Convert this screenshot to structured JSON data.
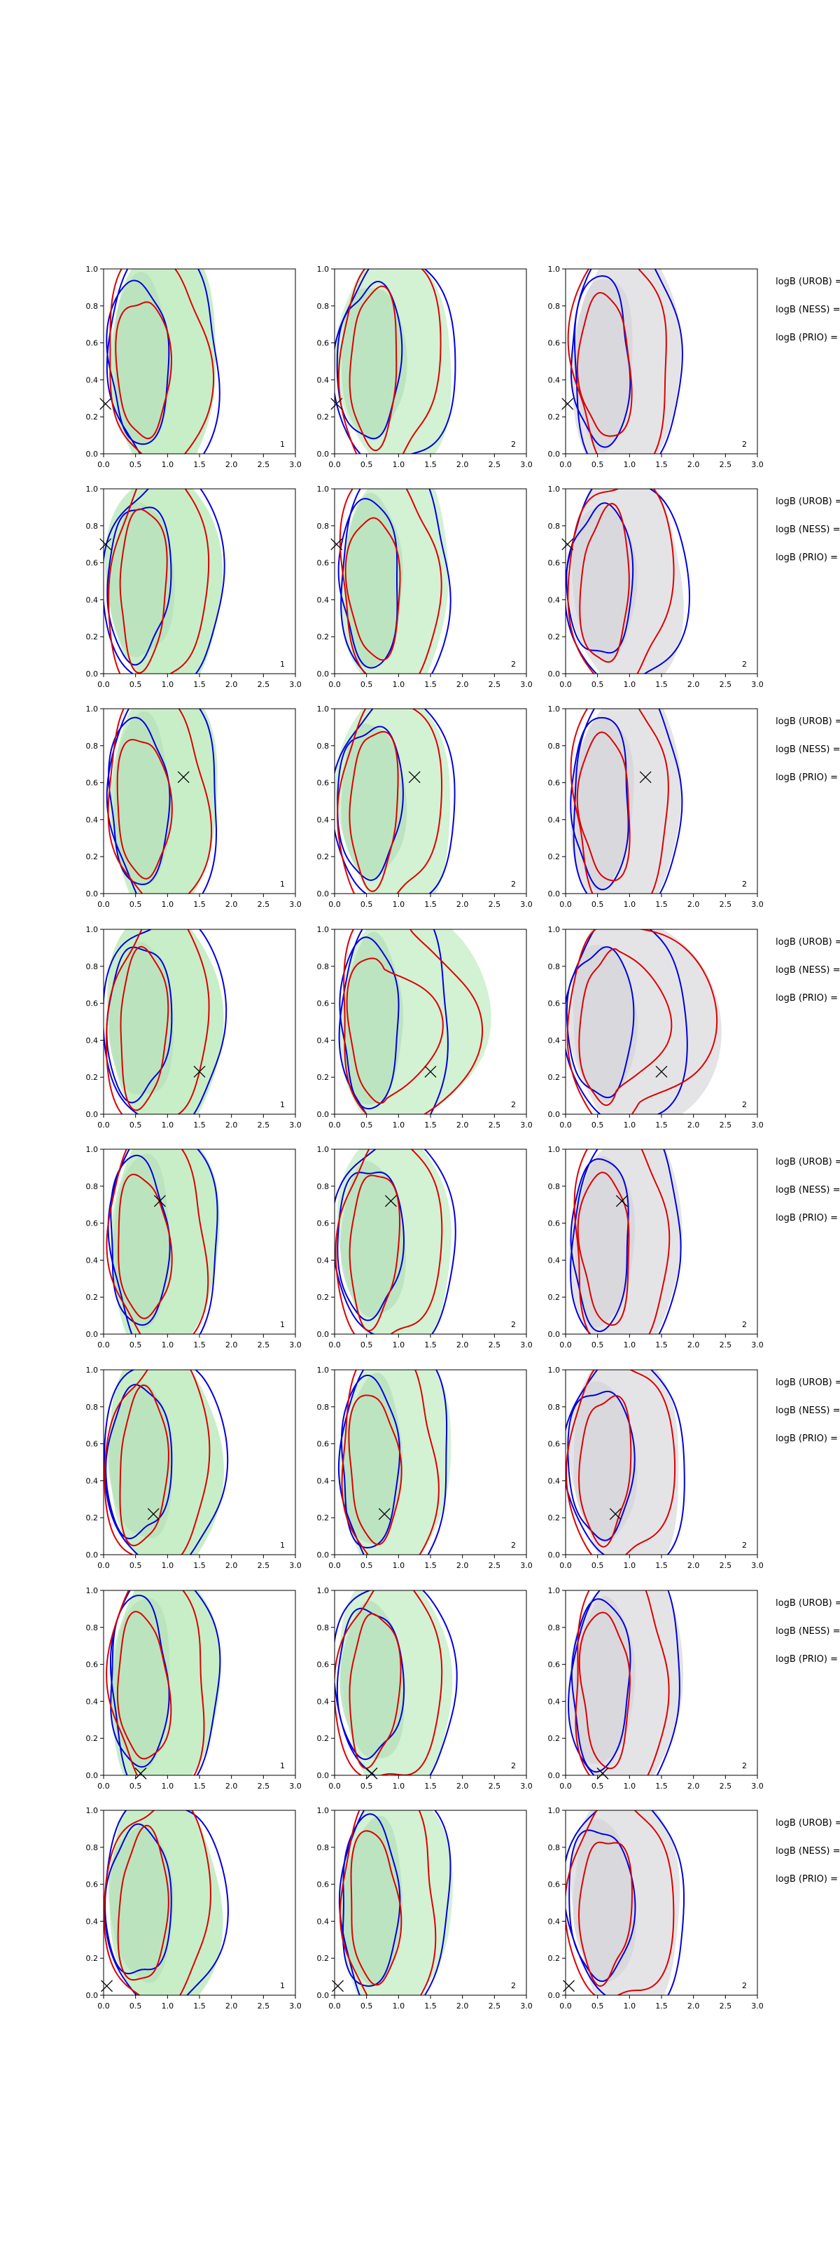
{
  "chart_data": {
    "type": "contour_grid",
    "rows": 8,
    "cols": 3,
    "xlim": [
      0.0,
      3.0
    ],
    "ylim": [
      0.0,
      1.0
    ],
    "x_ticks": [
      "0.0",
      "0.5",
      "1.0",
      "1.5",
      "2.0",
      "2.5",
      "3.0"
    ],
    "y_ticks": [
      "0.0",
      "0.2",
      "0.4",
      "0.6",
      "0.8",
      "1.0"
    ],
    "column_annotations": [
      "1",
      "2",
      "2"
    ],
    "side_labels": [
      "logB (UROB) =",
      "logB (NESS) =",
      "logB (PRIO) ="
    ],
    "truth_markers": [
      {
        "x": 0.03,
        "y": 0.27
      },
      {
        "x": 0.03,
        "y": 0.7
      },
      {
        "x": 1.25,
        "y": 0.63
      },
      {
        "x": 1.5,
        "y": 0.23
      },
      {
        "x": 0.88,
        "y": 0.72
      },
      {
        "x": 0.78,
        "y": 0.22
      },
      {
        "x": 0.58,
        "y": 0.01
      },
      {
        "x": 0.05,
        "y": 0.05
      }
    ],
    "colors": {
      "fill_green": "#c8eec8",
      "fill_grey": "#e4e4e6",
      "blue": "#0000dd",
      "red": "#dd0000"
    }
  }
}
